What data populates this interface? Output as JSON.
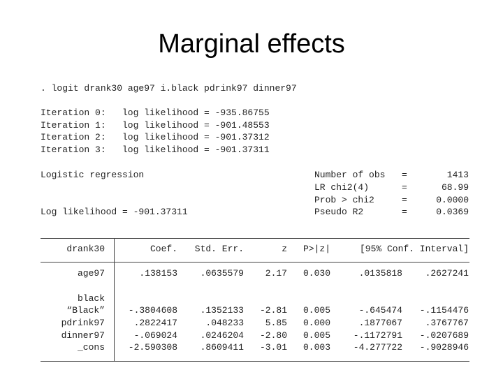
{
  "title": "Marginal effects",
  "command": ". logit drank30 age97 i.black pdrink97 dinner97",
  "iterations": [
    {
      "label": "Iteration 0:",
      "text": "log likelihood = -935.86755"
    },
    {
      "label": "Iteration 1:",
      "text": "log likelihood = -901.48553"
    },
    {
      "label": "Iteration 2:",
      "text": "log likelihood = -901.37312"
    },
    {
      "label": "Iteration 3:",
      "text": "log likelihood = -901.37311"
    }
  ],
  "model": "Logistic regression",
  "log_likelihood": "Log likelihood = -901.37311",
  "stats": [
    {
      "label": "Number of obs",
      "sign": "=",
      "value": "1413"
    },
    {
      "label": "LR chi2(4)",
      "sign": "=",
      "value": "68.99"
    },
    {
      "label": "Prob > chi2",
      "sign": "=",
      "value": "0.0000"
    },
    {
      "label": "Pseudo R2",
      "sign": "=",
      "value": "0.0369"
    }
  ],
  "table": {
    "header": [
      "drank30",
      "Coef.",
      "Std. Err.",
      "z",
      "P>|z|",
      "[95% Conf. Interval]"
    ],
    "rows": [
      [
        "age97",
        ".138153",
        ".0635579",
        "2.17",
        "0.030",
        ".0135818",
        ".2627241"
      ],
      [
        "black"
      ],
      [
        "“Black”",
        "-.3804608",
        ".1352133",
        "-2.81",
        "0.005",
        "-.645474",
        "-.1154476"
      ],
      [
        "pdrink97",
        ".2822417",
        ".048233",
        "5.85",
        "0.000",
        ".1877067",
        ".3767767"
      ],
      [
        "dinner97",
        "-.069024",
        ".0246204",
        "-2.80",
        "0.005",
        "-.1172791",
        "-.0207689"
      ],
      [
        "_cons",
        "-2.590308",
        ".8609411",
        "-3.01",
        "0.003",
        "-4.277722",
        "-.9028946"
      ]
    ]
  }
}
